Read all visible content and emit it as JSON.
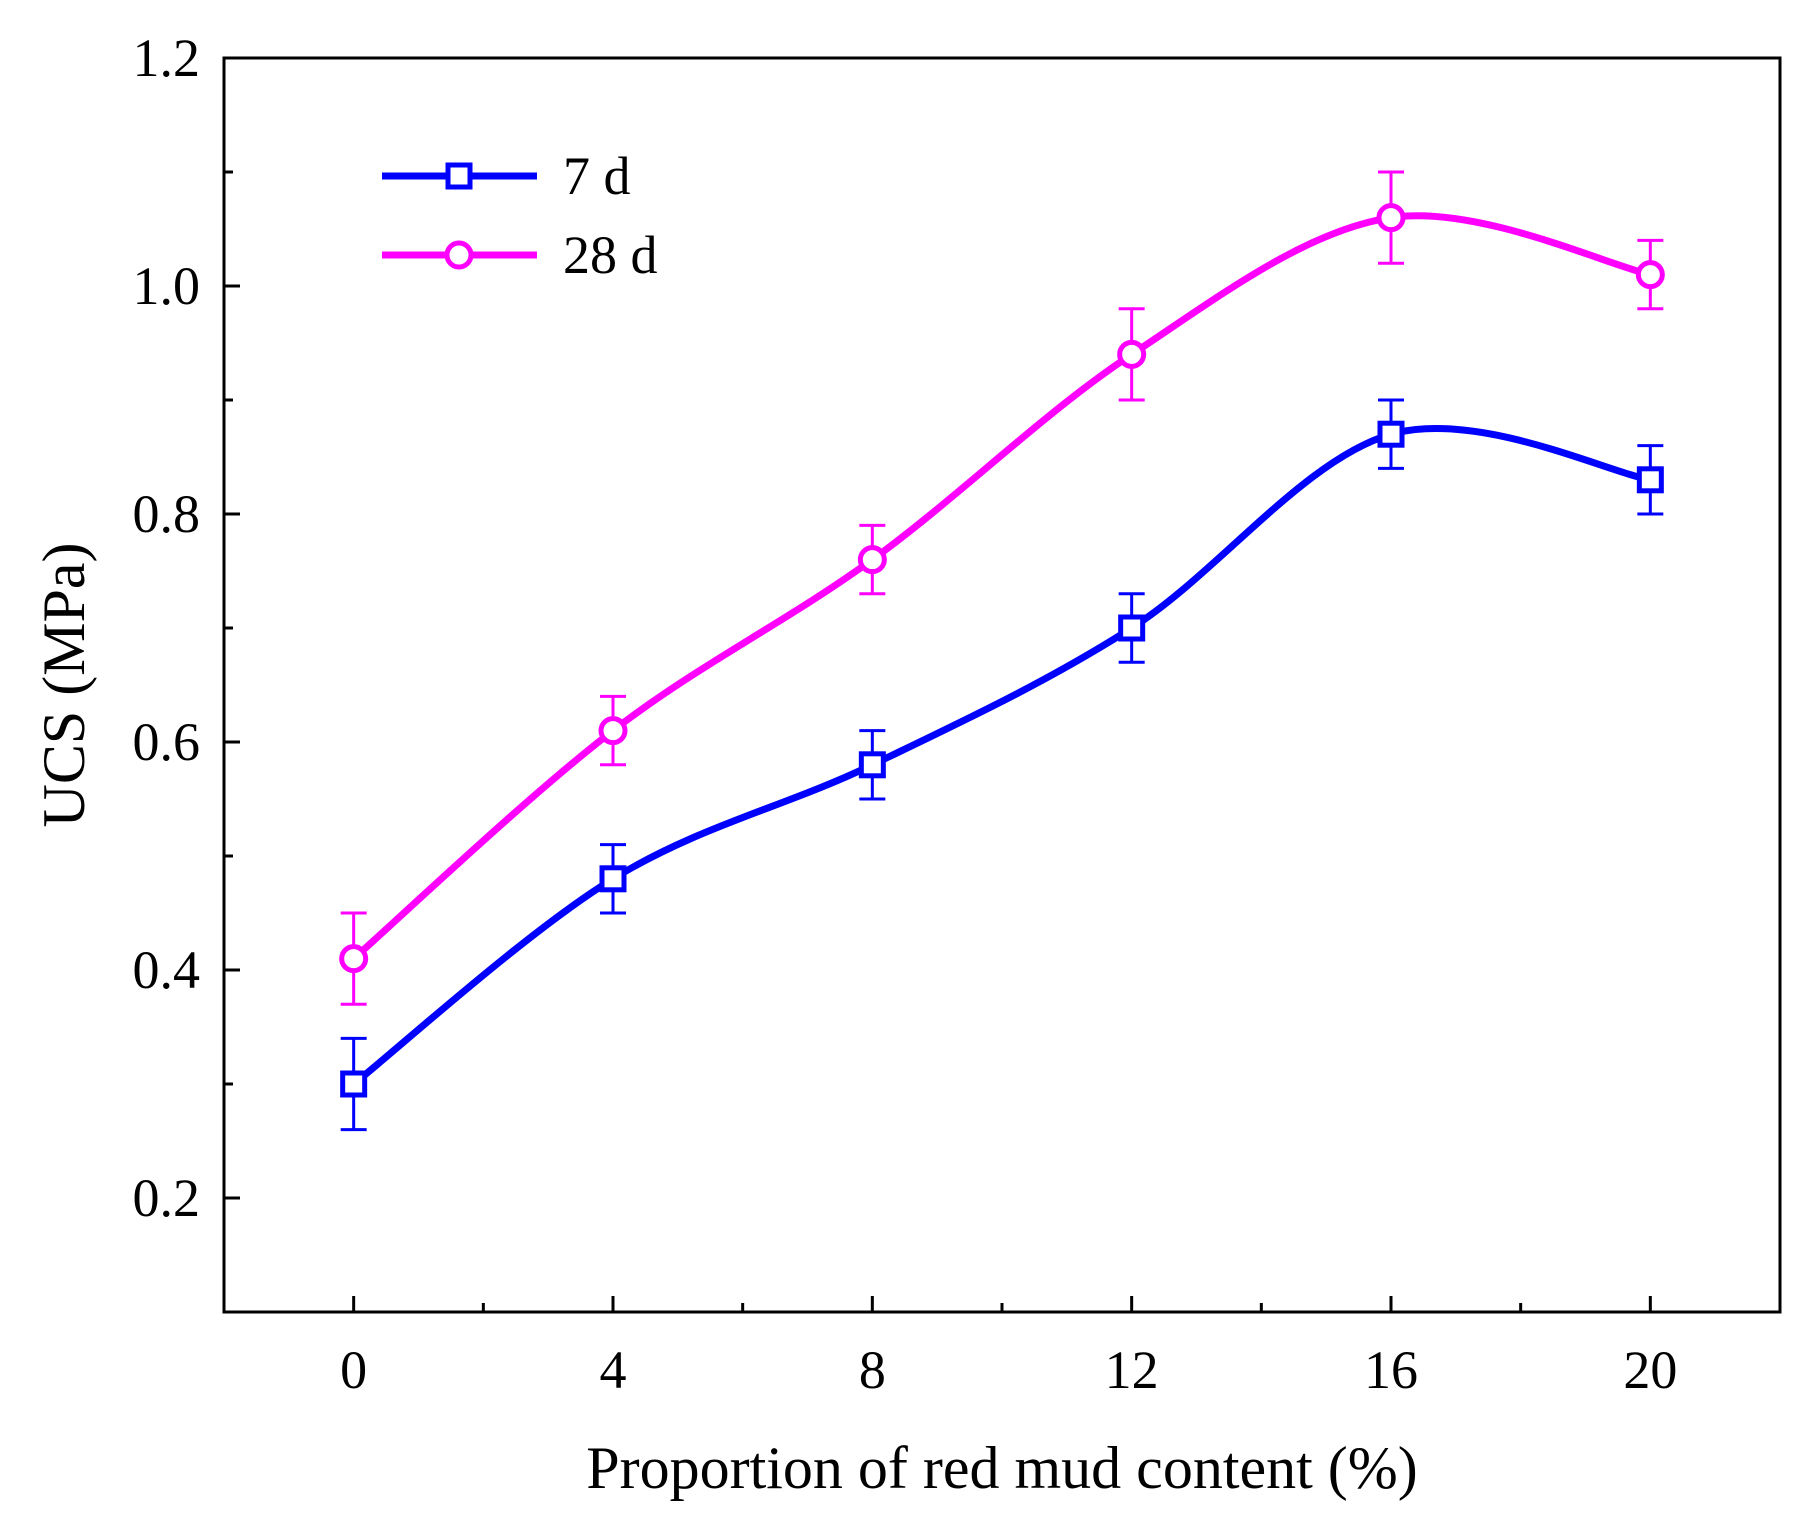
{
  "chart_data": {
    "type": "line",
    "title": "",
    "xlabel": "Proportion of red mud content (%)",
    "ylabel": "UCS (MPa)",
    "xlim": [
      -2,
      22
    ],
    "ylim": [
      0.1,
      1.2
    ],
    "x": [
      0,
      4,
      8,
      12,
      16,
      20
    ],
    "x_ticks": [
      0,
      4,
      8,
      12,
      16,
      20
    ],
    "x_tick_labels": [
      "0",
      "4",
      "8",
      "12",
      "16",
      "20"
    ],
    "x_minor_ticks": [
      -2,
      2,
      6,
      10,
      14,
      18,
      22
    ],
    "y_ticks": [
      0.2,
      0.4,
      0.6,
      0.8,
      1.0,
      1.2
    ],
    "y_tick_labels": [
      "0.2",
      "0.4",
      "0.6",
      "0.8",
      "1.0",
      "1.2"
    ],
    "y_minor_ticks": [
      0.3,
      0.5,
      0.7,
      0.9,
      1.1
    ],
    "grid": false,
    "legend_position": "top-left",
    "series": [
      {
        "name": "7 d",
        "marker": "square",
        "color": "#0000ff",
        "values": [
          0.3,
          0.48,
          0.58,
          0.7,
          0.87,
          0.83
        ],
        "errors": [
          0.04,
          0.03,
          0.03,
          0.03,
          0.03,
          0.03
        ]
      },
      {
        "name": "28 d",
        "marker": "circle",
        "color": "#ff00ff",
        "values": [
          0.41,
          0.61,
          0.76,
          0.94,
          1.06,
          1.01
        ],
        "errors": [
          0.04,
          0.03,
          0.03,
          0.04,
          0.04,
          0.03
        ]
      }
    ]
  }
}
